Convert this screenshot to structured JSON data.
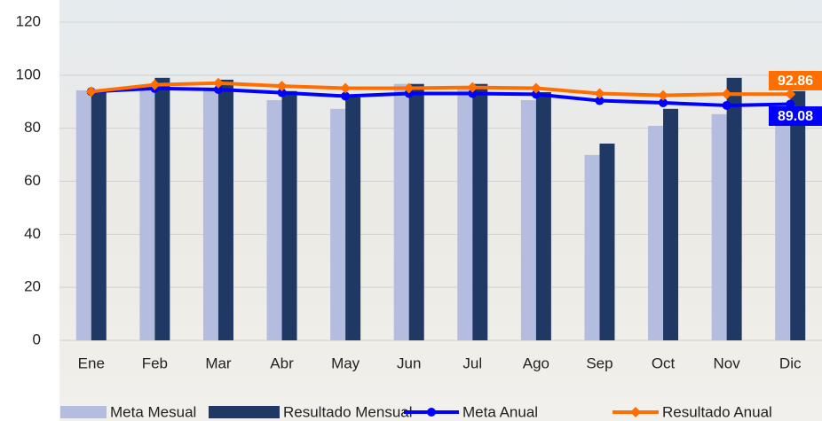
{
  "chart_data": {
    "type": "bar",
    "categories": [
      "Ene",
      "Feb",
      "Mar",
      "Abr",
      "May",
      "Jun",
      "Jul",
      "Ago",
      "Sep",
      "Oct",
      "Nov",
      "Dic"
    ],
    "series": [
      {
        "name": "Meta Mesual",
        "type": "bar",
        "color": "#b4bcdf",
        "values": [
          94.3,
          95,
          95,
          90.6,
          87.3,
          96.7,
          95,
          90.6,
          69.9,
          80.9,
          85.3,
          88
        ]
      },
      {
        "name": "Resultado Mensual",
        "type": "bar",
        "color": "#1f3864",
        "values": [
          94.6,
          99,
          98.3,
          94,
          91.6,
          96.7,
          96.7,
          93.6,
          74.2,
          87.3,
          99,
          94
        ]
      },
      {
        "name": "Meta Anual",
        "type": "line",
        "color": "#0000ff",
        "values": [
          93.8,
          95,
          94.6,
          93.4,
          92.1,
          93.1,
          93.1,
          92.8,
          90.4,
          89.6,
          88.6,
          89.08
        ]
      },
      {
        "name": "Resultado Anual",
        "type": "line",
        "color": "#ff6f00",
        "values": [
          93.8,
          96.4,
          97,
          95.9,
          95.1,
          95.1,
          95.4,
          95.1,
          93.1,
          92.4,
          92.9,
          92.86
        ]
      }
    ],
    "ylim": [
      0,
      120
    ],
    "yticks": [
      0,
      20,
      40,
      60,
      80,
      100,
      120
    ],
    "grid": true,
    "legend": "bottom"
  }
}
